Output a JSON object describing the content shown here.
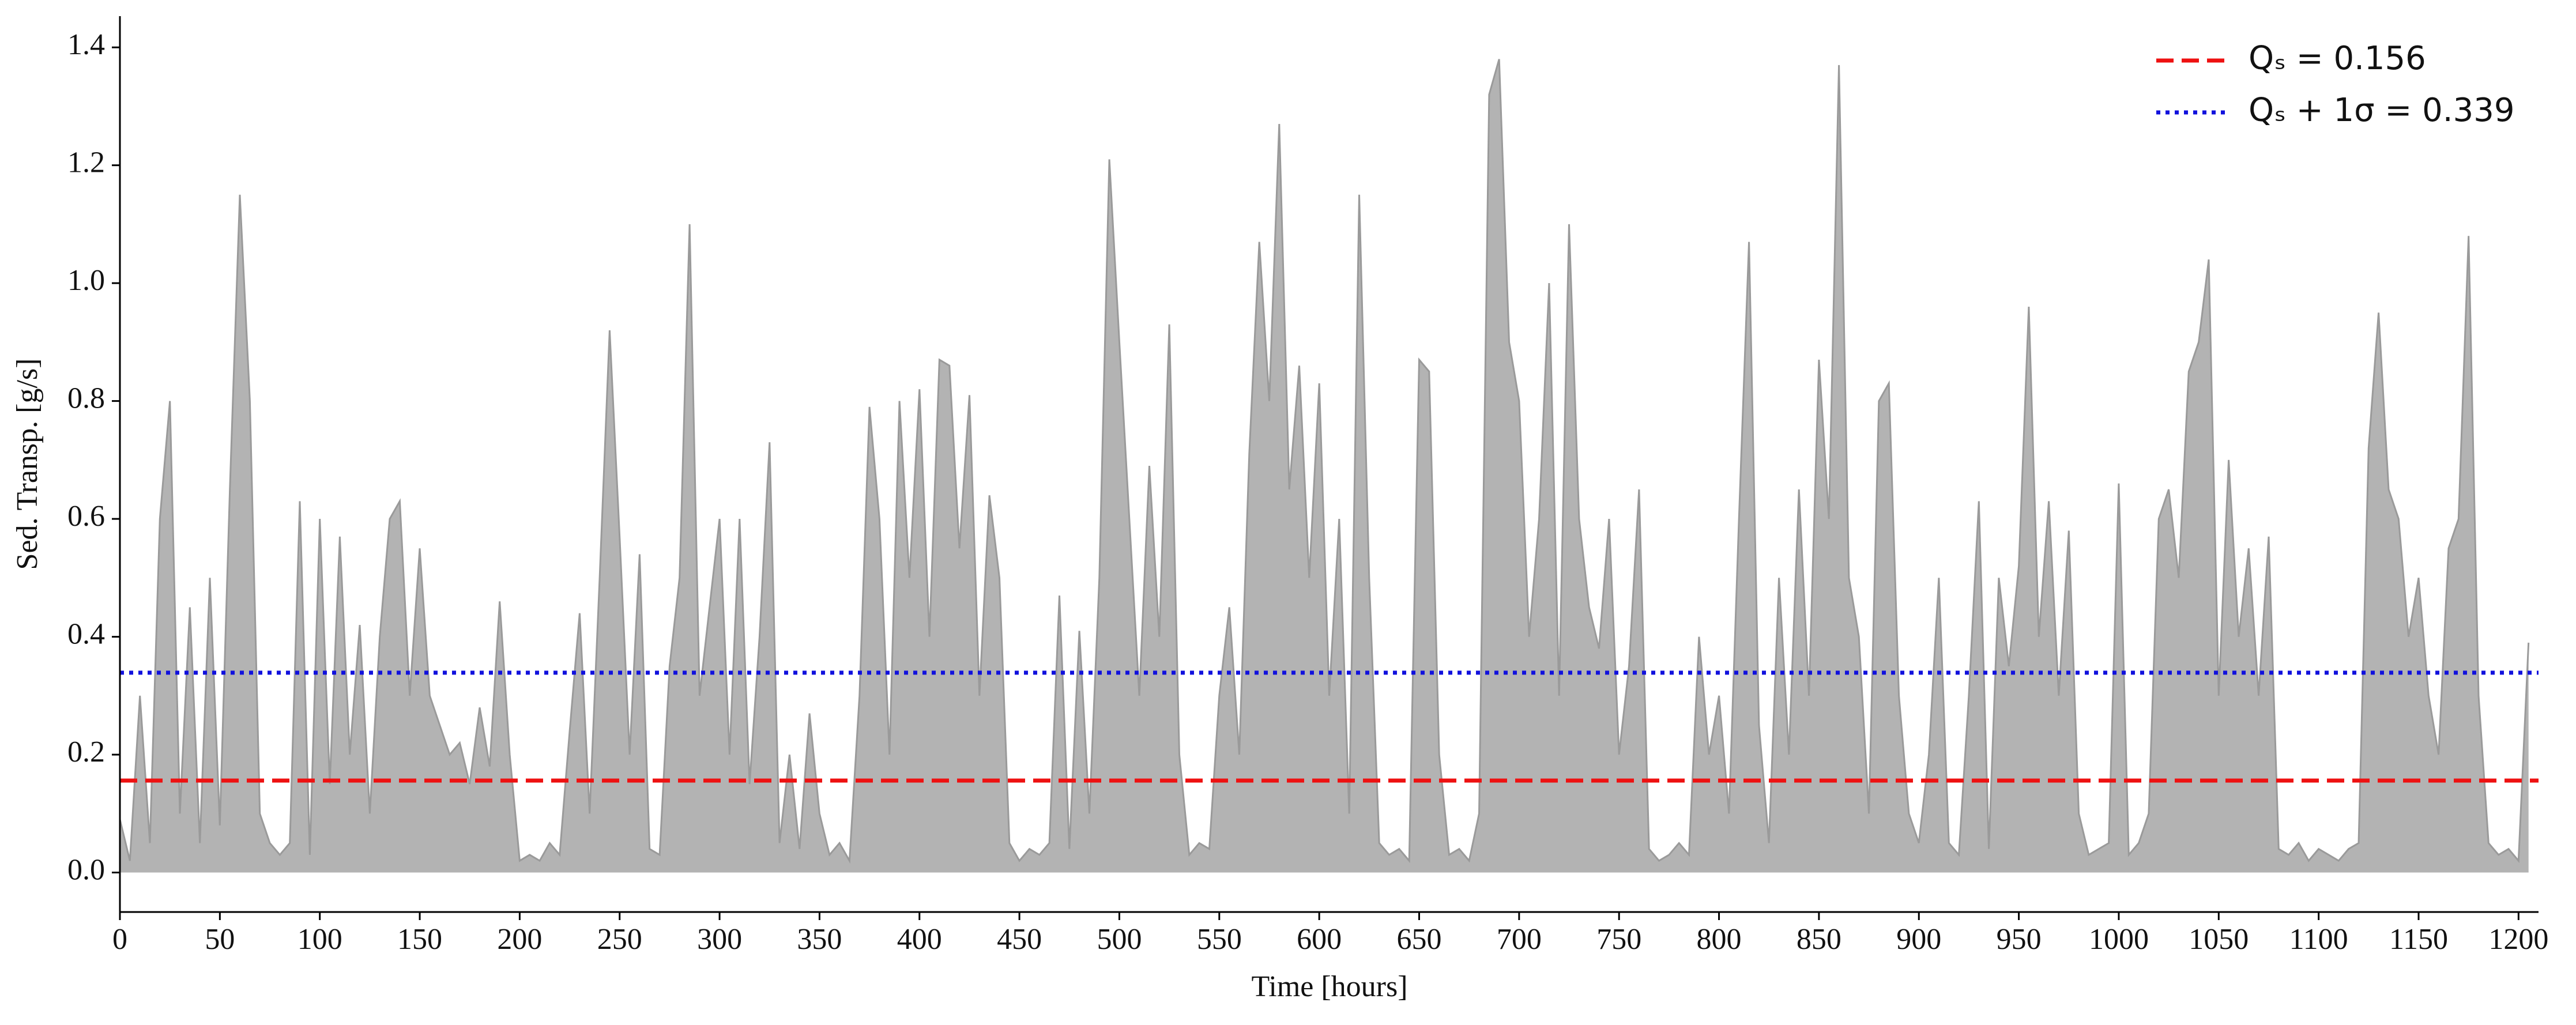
{
  "chart_data": {
    "type": "area",
    "xlabel": "Time [hours]",
    "ylabel": "Sed. Transp. [g/s]",
    "x": [
      0,
      5,
      10,
      15,
      20,
      25,
      30,
      35,
      40,
      45,
      50,
      55,
      60,
      65,
      70,
      75,
      80,
      85,
      90,
      95,
      100,
      105,
      110,
      115,
      120,
      125,
      130,
      135,
      140,
      145,
      150,
      155,
      160,
      165,
      170,
      175,
      180,
      185,
      190,
      195,
      200,
      205,
      210,
      215,
      220,
      225,
      230,
      235,
      240,
      245,
      250,
      255,
      260,
      265,
      270,
      275,
      280,
      285,
      290,
      295,
      300,
      305,
      310,
      315,
      320,
      325,
      330,
      335,
      340,
      345,
      350,
      355,
      360,
      365,
      370,
      375,
      380,
      385,
      390,
      395,
      400,
      405,
      410,
      415,
      420,
      425,
      430,
      435,
      440,
      445,
      450,
      455,
      460,
      465,
      470,
      475,
      480,
      485,
      490,
      495,
      500,
      505,
      510,
      515,
      520,
      525,
      530,
      535,
      540,
      545,
      550,
      555,
      560,
      565,
      570,
      575,
      580,
      585,
      590,
      595,
      600,
      605,
      610,
      615,
      620,
      625,
      630,
      635,
      640,
      645,
      650,
      655,
      660,
      665,
      670,
      675,
      680,
      685,
      690,
      695,
      700,
      705,
      710,
      715,
      720,
      725,
      730,
      735,
      740,
      745,
      750,
      755,
      760,
      765,
      770,
      775,
      780,
      785,
      790,
      795,
      800,
      805,
      810,
      815,
      820,
      825,
      830,
      835,
      840,
      845,
      850,
      855,
      860,
      865,
      870,
      875,
      880,
      885,
      890,
      895,
      900,
      905,
      910,
      915,
      920,
      925,
      930,
      935,
      940,
      945,
      950,
      955,
      960,
      965,
      970,
      975,
      980,
      985,
      990,
      995,
      1000,
      1005,
      1010,
      1015,
      1020,
      1025,
      1030,
      1035,
      1040,
      1045,
      1050,
      1055,
      1060,
      1065,
      1070,
      1075,
      1080,
      1085,
      1090,
      1095,
      1100,
      1105,
      1110,
      1115,
      1120,
      1125,
      1130,
      1135,
      1140,
      1145,
      1150,
      1155,
      1160,
      1165,
      1170,
      1175,
      1180,
      1185,
      1190,
      1195,
      1200,
      1205
    ],
    "series": [
      {
        "color": "#9a9a9a",
        "values": [
          0.09,
          0.02,
          0.3,
          0.05,
          0.6,
          0.8,
          0.1,
          0.45,
          0.05,
          0.5,
          0.08,
          0.65,
          1.15,
          0.8,
          0.1,
          0.05,
          0.03,
          0.05,
          0.63,
          0.03,
          0.6,
          0.15,
          0.57,
          0.2,
          0.42,
          0.1,
          0.4,
          0.6,
          0.63,
          0.3,
          0.55,
          0.3,
          0.25,
          0.2,
          0.22,
          0.15,
          0.28,
          0.18,
          0.46,
          0.2,
          0.02,
          0.03,
          0.02,
          0.05,
          0.03,
          0.24,
          0.44,
          0.1,
          0.5,
          0.92,
          0.57,
          0.2,
          0.54,
          0.04,
          0.03,
          0.35,
          0.5,
          1.1,
          0.3,
          0.45,
          0.6,
          0.2,
          0.6,
          0.15,
          0.4,
          0.73,
          0.05,
          0.2,
          0.04,
          0.27,
          0.1,
          0.03,
          0.05,
          0.02,
          0.3,
          0.79,
          0.6,
          0.2,
          0.8,
          0.5,
          0.82,
          0.4,
          0.87,
          0.86,
          0.55,
          0.81,
          0.3,
          0.64,
          0.5,
          0.05,
          0.02,
          0.04,
          0.03,
          0.05,
          0.47,
          0.04,
          0.41,
          0.1,
          0.5,
          1.21,
          0.9,
          0.6,
          0.3,
          0.69,
          0.4,
          0.93,
          0.2,
          0.03,
          0.05,
          0.04,
          0.3,
          0.45,
          0.2,
          0.71,
          1.07,
          0.8,
          1.27,
          0.65,
          0.86,
          0.5,
          0.83,
          0.3,
          0.6,
          0.1,
          1.15,
          0.5,
          0.05,
          0.03,
          0.04,
          0.02,
          0.87,
          0.85,
          0.2,
          0.03,
          0.04,
          0.02,
          0.1,
          1.32,
          1.38,
          0.9,
          0.8,
          0.4,
          0.6,
          1.0,
          0.3,
          1.1,
          0.6,
          0.45,
          0.38,
          0.6,
          0.2,
          0.35,
          0.65,
          0.04,
          0.02,
          0.03,
          0.05,
          0.03,
          0.4,
          0.2,
          0.3,
          0.1,
          0.6,
          1.07,
          0.25,
          0.05,
          0.5,
          0.2,
          0.65,
          0.3,
          0.87,
          0.6,
          1.37,
          0.5,
          0.4,
          0.1,
          0.8,
          0.83,
          0.3,
          0.1,
          0.05,
          0.2,
          0.5,
          0.05,
          0.03,
          0.3,
          0.63,
          0.04,
          0.5,
          0.35,
          0.52,
          0.96,
          0.4,
          0.63,
          0.3,
          0.58,
          0.1,
          0.03,
          0.04,
          0.05,
          0.66,
          0.03,
          0.05,
          0.1,
          0.6,
          0.65,
          0.5,
          0.85,
          0.9,
          1.04,
          0.3,
          0.7,
          0.4,
          0.55,
          0.3,
          0.57,
          0.04,
          0.03,
          0.05,
          0.02,
          0.04,
          0.03,
          0.02,
          0.04,
          0.05,
          0.72,
          0.95,
          0.65,
          0.6,
          0.4,
          0.5,
          0.3,
          0.2,
          0.55,
          0.6,
          1.08,
          0.3,
          0.05,
          0.03,
          0.04,
          0.02,
          0.39
        ]
      }
    ],
    "hlines": [
      {
        "name": "Qₛ = 0.156",
        "value": 0.156,
        "color": "#ee1111",
        "style": "dashed"
      },
      {
        "name": "Qₛ + 1σ = 0.339",
        "value": 0.339,
        "color": "#1111dd",
        "style": "dotted"
      }
    ],
    "legend": "upper right",
    "xlim": [
      0,
      1210
    ],
    "ylim": [
      -0.067,
      1.453
    ],
    "xticks": [
      0,
      50,
      100,
      150,
      200,
      250,
      300,
      350,
      400,
      450,
      500,
      550,
      600,
      650,
      700,
      750,
      800,
      850,
      900,
      950,
      1000,
      1050,
      1100,
      1150,
      1200
    ],
    "yticks": [
      {
        "value": 0,
        "label": "0.0"
      },
      0.2,
      0.4,
      0.6,
      0.8,
      {
        "value": 1,
        "label": "1.0"
      },
      1.2,
      1.4
    ]
  }
}
